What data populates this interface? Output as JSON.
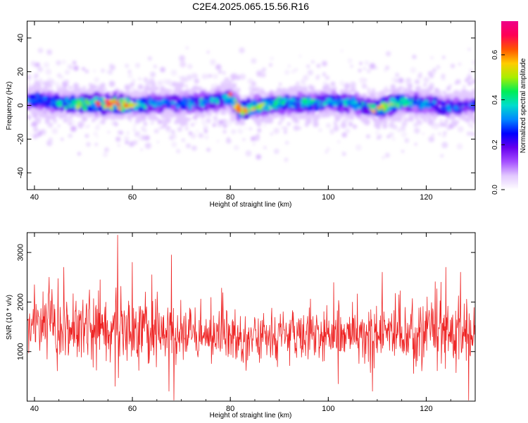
{
  "title": "C2E4.2025.065.15.56.R16",
  "colors": {
    "snr_line": "#ee2222",
    "colormap": [
      "#ffffff",
      "#e2c8ff",
      "#a44dff",
      "#6600ee",
      "#0000ff",
      "#0088ff",
      "#00ddcc",
      "#00ee55",
      "#aaee00",
      "#ffcc00",
      "#ff5500",
      "#ff0055",
      "#ee0088"
    ]
  },
  "chart_data": [
    {
      "type": "heatmap",
      "xlabel": "Height of straight line (km)",
      "ylabel": "Frequency (Hz)",
      "xlim": [
        38.5,
        130
      ],
      "ylim": [
        -50,
        50
      ],
      "xticks": [
        40,
        60,
        80,
        100,
        120
      ],
      "yticks": [
        -40,
        -20,
        0,
        20,
        40
      ],
      "grid": false,
      "colorbar": {
        "label": "Normalized spectral amplitude",
        "lim": [
          0,
          0.75
        ],
        "ticks": [
          0.0,
          0.2,
          0.4,
          0.6
        ]
      },
      "band_center_hz": [
        [
          40,
          3
        ],
        [
          45,
          1
        ],
        [
          50,
          1
        ],
        [
          55,
          1
        ],
        [
          60,
          0
        ],
        [
          65,
          1
        ],
        [
          70,
          1
        ],
        [
          75,
          2
        ],
        [
          80,
          4
        ],
        [
          82,
          -3
        ],
        [
          85,
          -1
        ],
        [
          90,
          1
        ],
        [
          95,
          1
        ],
        [
          100,
          2
        ],
        [
          105,
          1
        ],
        [
          110,
          -2
        ],
        [
          115,
          2
        ],
        [
          120,
          1
        ],
        [
          125,
          -1
        ],
        [
          130,
          0
        ]
      ],
      "band_halfwidth_hz": 8,
      "peak_amplitude": [
        [
          40,
          0.35
        ],
        [
          48,
          0.45
        ],
        [
          50,
          0.55
        ],
        [
          56,
          0.72
        ],
        [
          58,
          0.65
        ],
        [
          65,
          0.35
        ],
        [
          72,
          0.4
        ],
        [
          80,
          0.4
        ],
        [
          81,
          0.7
        ],
        [
          90,
          0.45
        ],
        [
          95,
          0.45
        ],
        [
          100,
          0.4
        ],
        [
          104,
          0.4
        ],
        [
          111,
          0.62
        ],
        [
          115,
          0.5
        ],
        [
          120,
          0.35
        ],
        [
          125,
          0.35
        ],
        [
          130,
          0.3
        ]
      ]
    },
    {
      "type": "line",
      "xlabel": "Height of straight line (km)",
      "ylabel": "SNR (10 * v/v)",
      "xlim": [
        38.5,
        130
      ],
      "ylim": [
        0,
        3400
      ],
      "xticks": [
        40,
        60,
        80,
        100,
        120
      ],
      "yticks": [
        1000,
        2000,
        3000
      ],
      "grid": false,
      "series": [
        {
          "baseline": [
            [
              38.5,
              1500
            ],
            [
              50,
              1450
            ],
            [
              60,
              1400
            ],
            [
              70,
              1350
            ],
            [
              80,
              1300
            ],
            [
              90,
              1300
            ],
            [
              100,
              1280
            ],
            [
              110,
              1300
            ],
            [
              120,
              1380
            ],
            [
              130,
              1300
            ]
          ],
          "spread": [
            [
              38.5,
              550
            ],
            [
              50,
              650
            ],
            [
              60,
              650
            ],
            [
              70,
              550
            ],
            [
              80,
              500
            ],
            [
              90,
              450
            ],
            [
              100,
              400
            ],
            [
              110,
              550
            ],
            [
              120,
              600
            ],
            [
              130,
              600
            ]
          ],
          "peaks": [
            [
              57,
              3350
            ],
            [
              68,
              2950
            ],
            [
              60,
              2800
            ],
            [
              46,
              2700
            ],
            [
              124,
              2700
            ],
            [
              127,
              2600
            ],
            [
              111,
              2600
            ],
            [
              123,
              2400
            ],
            [
              64,
              2550
            ],
            [
              43,
              2500
            ]
          ],
          "troughs": [
            [
              68.5,
              20
            ],
            [
              128.7,
              20
            ],
            [
              67.5,
              200
            ],
            [
              56.5,
              300
            ],
            [
              109,
              200
            ],
            [
              102,
              350
            ]
          ]
        }
      ]
    }
  ]
}
